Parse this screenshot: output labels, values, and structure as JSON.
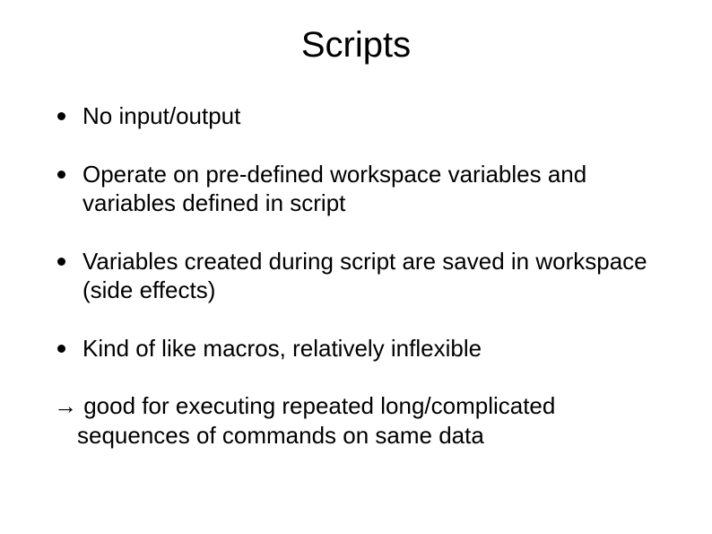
{
  "title": "Scripts",
  "bullets": [
    "No input/output",
    "Operate on pre-defined workspace variables and variables defined in script",
    "Variables created during script are saved in workspace (side effects)",
    "Kind of like macros, relatively inflexible"
  ],
  "conclusion": "→ good for executing repeated long/complicated sequences of commands on same data",
  "colors": {
    "background": "#ffffff",
    "text": "#000000",
    "bullet": "#000000"
  },
  "typography": {
    "title_fontsize": 40,
    "body_fontsize": 26,
    "font_family": "Arial"
  }
}
